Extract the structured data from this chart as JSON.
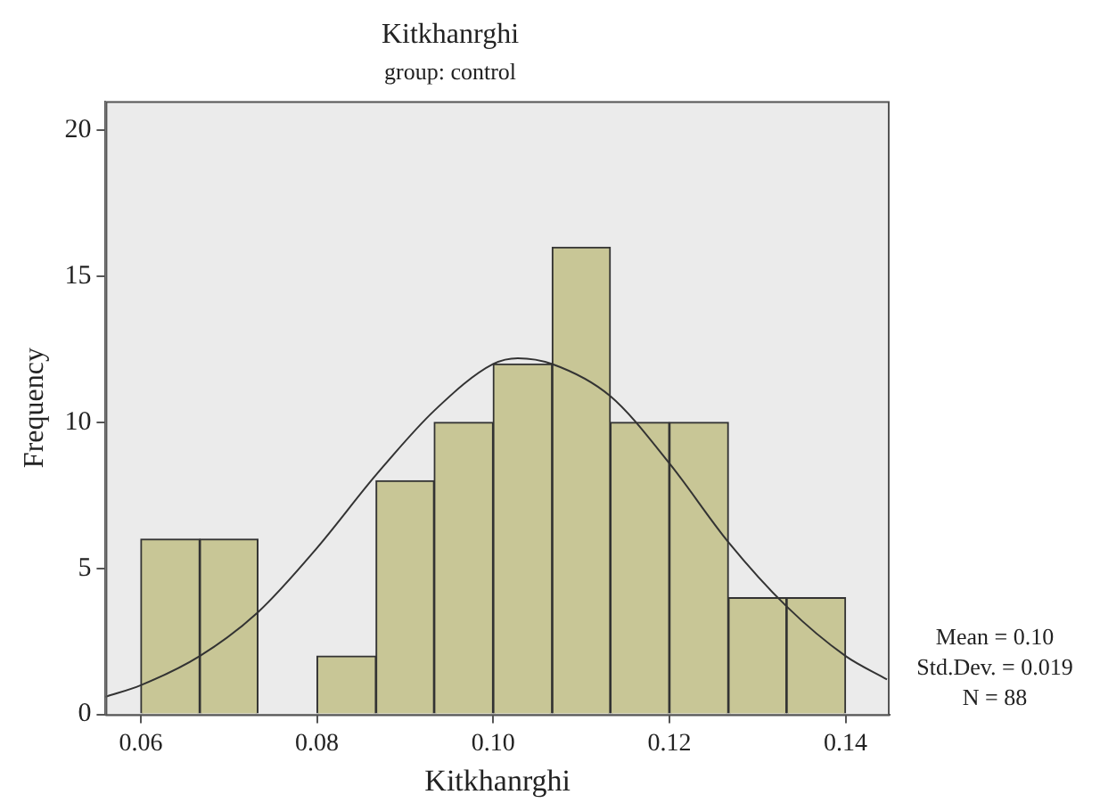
{
  "chart_data": {
    "type": "histogram",
    "title": "Kitkhanrghi",
    "subtitle": "group: control",
    "xlabel": "Kitkhanrghi",
    "ylabel": "Frequency",
    "bins": [
      0.06,
      0.0667,
      0.0733,
      0.08,
      0.0867,
      0.0933,
      0.1,
      0.1067,
      0.1133,
      0.12,
      0.1267,
      0.1333,
      0.14
    ],
    "values": [
      6,
      6,
      0,
      2,
      8,
      10,
      12,
      16,
      10,
      10,
      4,
      4
    ],
    "color": "#c8c696",
    "series": [
      {
        "type": "line",
        "x": [
          0.056,
          0.06,
          0.0667,
          0.0733,
          0.08,
          0.0867,
          0.0933,
          0.1,
          0.1028,
          0.1067,
          0.1133,
          0.12,
          0.1267,
          0.1333,
          0.14,
          0.1447
        ],
        "values": [
          0.6,
          1.0,
          2.0,
          3.5,
          5.7,
          8.2,
          10.4,
          12.0,
          12.2,
          12.0,
          10.9,
          8.6,
          5.9,
          3.7,
          2.0,
          1.2
        ],
        "color": "#333333"
      }
    ],
    "xlim": [
      0.056,
      0.145
    ],
    "xticks": [
      0.06,
      0.08,
      {
        "value": 0.1,
        "label": "0.10"
      },
      0.12,
      0.14
    ],
    "ylim": [
      0,
      21
    ],
    "yticks": [
      0,
      5,
      10,
      15,
      20
    ],
    "grid": false,
    "legend": false,
    "marker": "none",
    "annotations": [
      "Mean = 0.10",
      "Std.Dev. = 0.019",
      "N = 88"
    ]
  }
}
